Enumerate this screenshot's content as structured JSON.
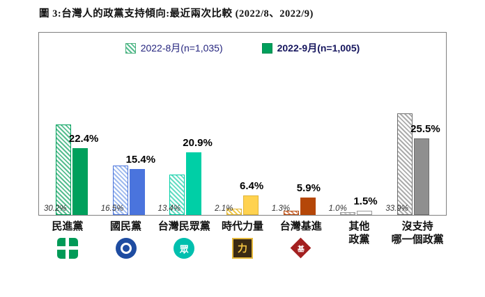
{
  "page": {
    "title": "圖 3:台灣人的政黨支持傾向:最近兩次比較 (2022/8、2022/9)"
  },
  "chart_data": {
    "type": "bar",
    "title": "圖 3:台灣人的政黨支持傾向:最近兩次比較 (2022/8、2022/9)",
    "categories": [
      "民進黨",
      "國民黨",
      "台灣民眾黨",
      "時代力量",
      "台灣基進",
      "其他政黨",
      "沒支持哪一個政黨"
    ],
    "category_lines": [
      [
        "民進黨"
      ],
      [
        "國民黨"
      ],
      [
        "台灣民眾黨"
      ],
      [
        "時代力量"
      ],
      [
        "台灣基進"
      ],
      [
        "其他",
        "政黨"
      ],
      [
        "沒支持",
        "哪一個政黨"
      ]
    ],
    "series": [
      {
        "name": "2022-8月(n=1,035)",
        "style": "hatched",
        "values": [
          30.2,
          16.5,
          13.4,
          2.1,
          1.3,
          1.0,
          33.9
        ]
      },
      {
        "name": "2022-9月(n=1,005)",
        "style": "solid",
        "values": [
          22.4,
          15.4,
          20.9,
          6.4,
          5.9,
          1.5,
          25.5
        ]
      }
    ],
    "value_labels": {
      "aug": [
        "30.2%",
        "16.5%",
        "13.4%",
        "2.1%",
        "1.3%",
        "1.0%",
        "33.9%"
      ],
      "sep": [
        "22.4%",
        "15.4%",
        "20.9%",
        "6.4%",
        "5.9%",
        "1.5%",
        "25.5%"
      ]
    },
    "solid_colors": [
      "#00a05c",
      "#4a74dd",
      "#00cfa6",
      "#ffd24f",
      "#b54708",
      "#fbfbfb",
      "#8f8f8f"
    ],
    "hatch_colors": [
      "#55bd8f",
      "#9db9ee",
      "#63dcc2",
      "#f0c94a",
      "#d98a63",
      "#c6c6c6",
      "#ababab"
    ],
    "bar_border_colors": [
      "#00a05c",
      "#4a74dd",
      "#00cfa6",
      "#e0b53a",
      "#b54708",
      "#9a9a9a",
      "#6f6f6f"
    ],
    "ylim": [
      0,
      40
    ],
    "grid": false,
    "legend_position": "top",
    "logos": [
      {
        "id": "dpp-logo",
        "type": "dpp",
        "glyph": ""
      },
      {
        "id": "kmt-logo",
        "type": "kmt",
        "glyph": ""
      },
      {
        "id": "tpp-logo",
        "type": "tpp",
        "glyph": "眾"
      },
      {
        "id": "npp-logo",
        "type": "npp",
        "glyph": "力"
      },
      {
        "id": "tsp-logo",
        "type": "tsp",
        "glyph": "基"
      },
      null,
      null
    ]
  }
}
